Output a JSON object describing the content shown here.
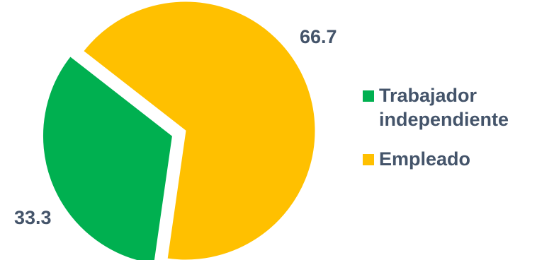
{
  "chart_data": {
    "type": "pie",
    "title": "",
    "legend_position": "right",
    "slices": [
      {
        "name": "Trabajador independiente",
        "value": 33.3,
        "label": "33.3",
        "color": "#00b050",
        "exploded": true
      },
      {
        "name": "Empleado",
        "value": 66.7,
        "label": "66.7",
        "color": "#ffc000",
        "exploded": false
      }
    ],
    "legend": [
      {
        "line1": "Trabajador",
        "line2": "independiente",
        "color": "#00b050"
      },
      {
        "line1": "Empleado",
        "line2": "",
        "color": "#ffc000"
      }
    ]
  }
}
